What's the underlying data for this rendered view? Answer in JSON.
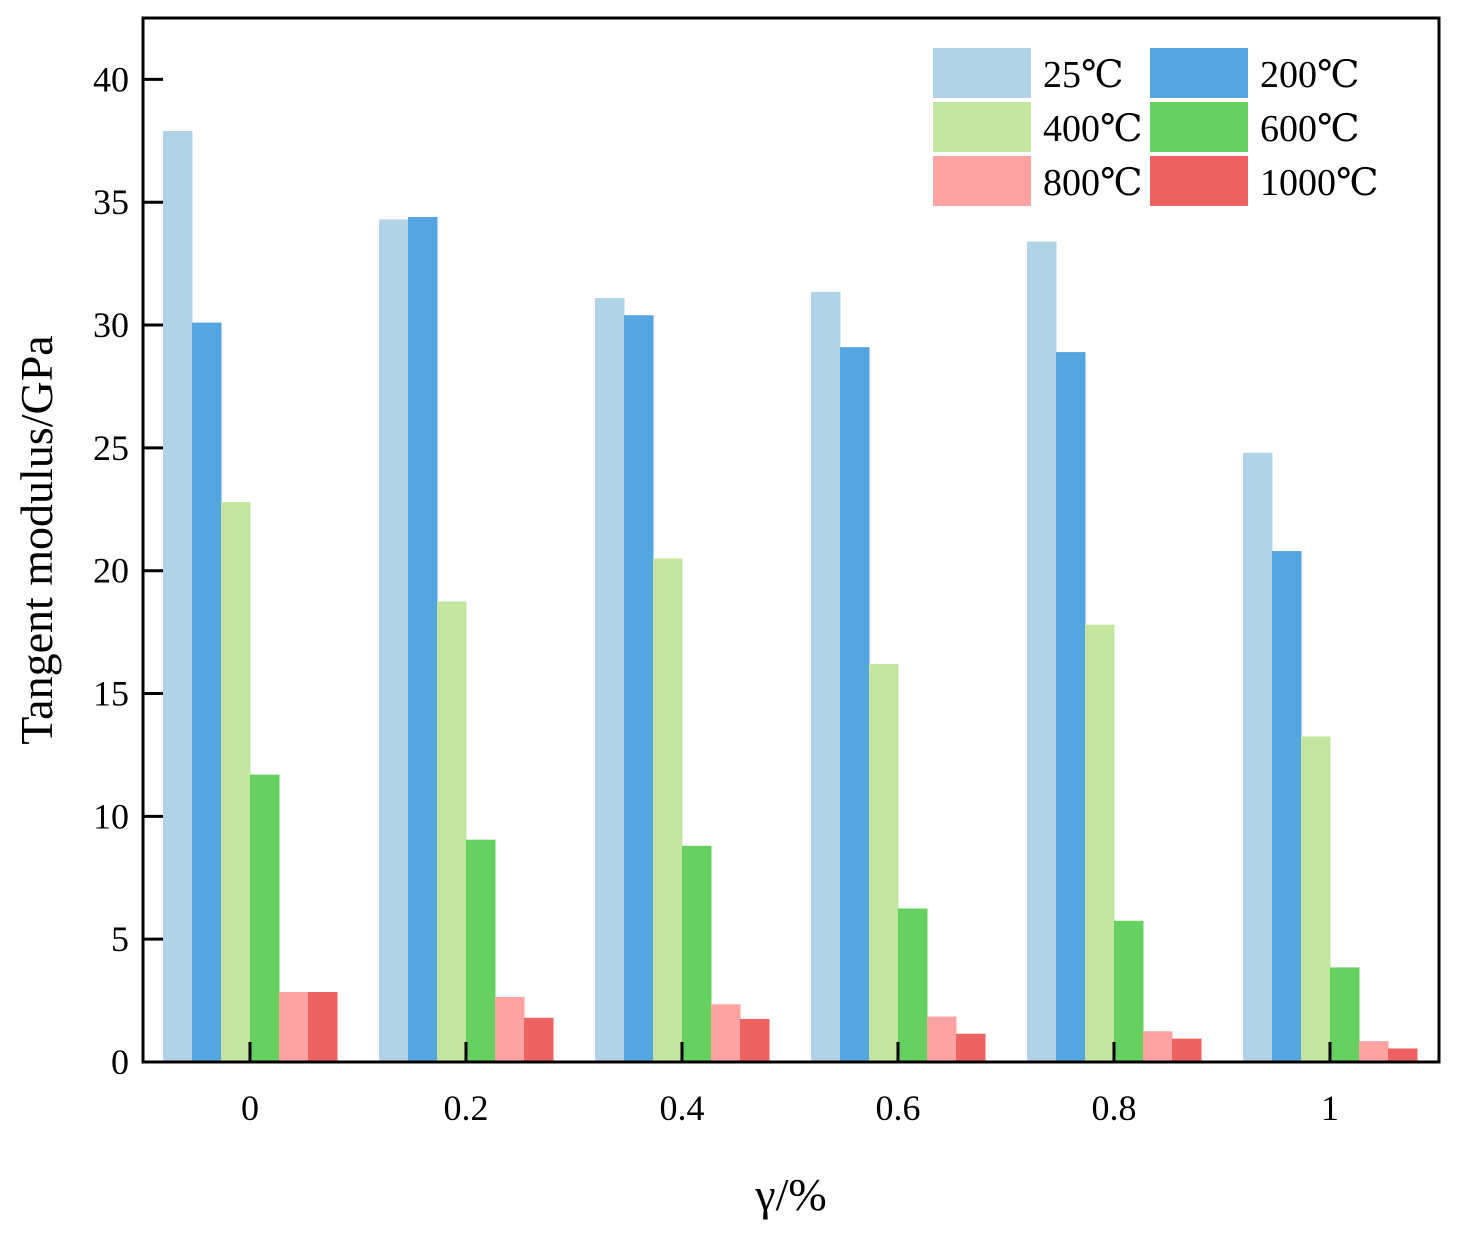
{
  "chart_data": {
    "type": "bar",
    "xlabel": "γ/%",
    "ylabel": "Tangent modulus/GPa",
    "categories": [
      "0",
      "0.2",
      "0.4",
      "0.6",
      "0.8",
      "1"
    ],
    "ylim": [
      0,
      42.5
    ],
    "yticks": [
      0,
      5,
      10,
      15,
      20,
      25,
      30,
      35,
      40
    ],
    "legend_position": "top-right",
    "series": [
      {
        "name": "25℃",
        "color": "#b0d4e6",
        "values": [
          37.9,
          34.3,
          31.1,
          31.35,
          33.4,
          24.8
        ]
      },
      {
        "name": "200℃",
        "color": "#55a6e0",
        "values": [
          30.1,
          34.4,
          30.4,
          29.1,
          28.9,
          20.8
        ]
      },
      {
        "name": "400℃",
        "color": "#c4e7a0",
        "values": [
          22.8,
          18.75,
          20.5,
          16.2,
          17.8,
          13.25
        ]
      },
      {
        "name": "600℃",
        "color": "#66d160",
        "values": [
          11.7,
          9.05,
          8.8,
          6.25,
          5.75,
          3.85
        ]
      },
      {
        "name": "800℃",
        "color": "#fda4a3",
        "values": [
          2.85,
          2.65,
          2.35,
          1.85,
          1.25,
          0.85
        ]
      },
      {
        "name": "1000℃",
        "color": "#ee6261",
        "values": [
          2.85,
          1.8,
          1.75,
          1.15,
          0.95,
          0.55
        ]
      }
    ]
  }
}
